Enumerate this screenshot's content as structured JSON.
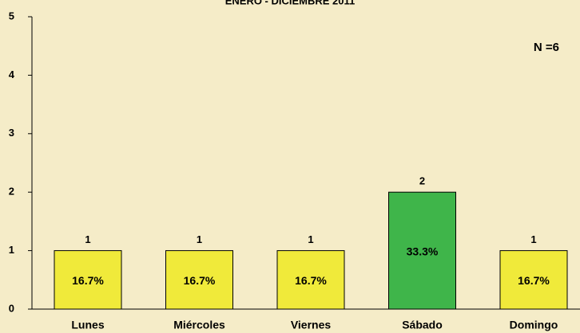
{
  "chart_data": {
    "type": "bar",
    "title": "ENERO - DICIEMBRE 2011",
    "categories": [
      "Lunes",
      "Miércoles",
      "Viernes",
      "Sábado",
      "Domingo"
    ],
    "values": [
      1,
      1,
      1,
      2,
      1
    ],
    "colors": [
      "#f0ea3a",
      "#f0ea3a",
      "#f0ea3a",
      "#3fb54a",
      "#f0ea3a"
    ],
    "share_labels": [
      "16.7%",
      "16.7%",
      "16.7%",
      "33.3%",
      "16.7%"
    ],
    "annotation": "N =6",
    "ylim": [
      0,
      5
    ],
    "yticks": [
      0,
      1,
      2,
      3,
      4,
      5
    ],
    "grid": false
  }
}
